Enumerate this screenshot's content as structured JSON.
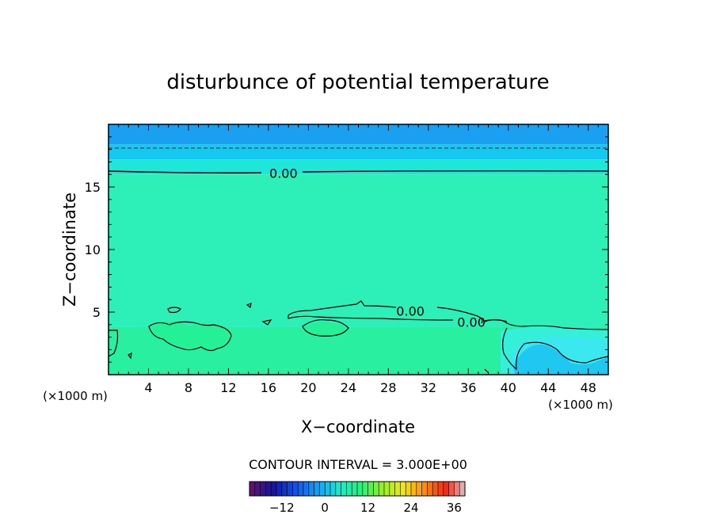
{
  "chart_data": {
    "type": "heatmap",
    "title": "disturbunce of potential temperature",
    "xlabel": "X−coordinate",
    "ylabel": "Z−coordinate",
    "x_unit": "(×1000 m)",
    "y_unit": "(×1000 m)",
    "xlim": [
      0,
      50
    ],
    "ylim": [
      0,
      20
    ],
    "x_ticks": [
      4,
      8,
      12,
      16,
      20,
      24,
      28,
      32,
      36,
      40,
      44,
      48
    ],
    "y_ticks": [
      5,
      10,
      15
    ],
    "contour_interval_text": "CONTOUR INTERVAL = 3.000E+00",
    "contour_labels": [
      {
        "text": "0.00",
        "x": 17.5,
        "z": 16.1
      },
      {
        "text": "0.00",
        "x": 30.2,
        "z": 5.1
      },
      {
        "text": "0.00",
        "x": 36.3,
        "z": 4.2
      }
    ],
    "colorbar": {
      "min": -21,
      "max": 39,
      "ticks": [
        "−12",
        "0",
        "12",
        "24",
        "36"
      ],
      "tick_values": [
        -12,
        0,
        12,
        24,
        36
      ]
    },
    "field_bands": [
      {
        "z0": 0,
        "z1": 3.8,
        "color": "#28f0a0"
      },
      {
        "z0": 3.8,
        "z1": 16.0,
        "color": "#2cf0b8"
      },
      {
        "z0": 16.0,
        "z1": 17.2,
        "color": "#1ee6d8"
      },
      {
        "z0": 17.2,
        "z1": 18.4,
        "color": "#14c8f0"
      },
      {
        "z0": 18.4,
        "z1": 20.0,
        "color": "#1aa0f0"
      }
    ],
    "dashed_contour_z": 18.1,
    "zero_contour_top_z": 16.1
  }
}
